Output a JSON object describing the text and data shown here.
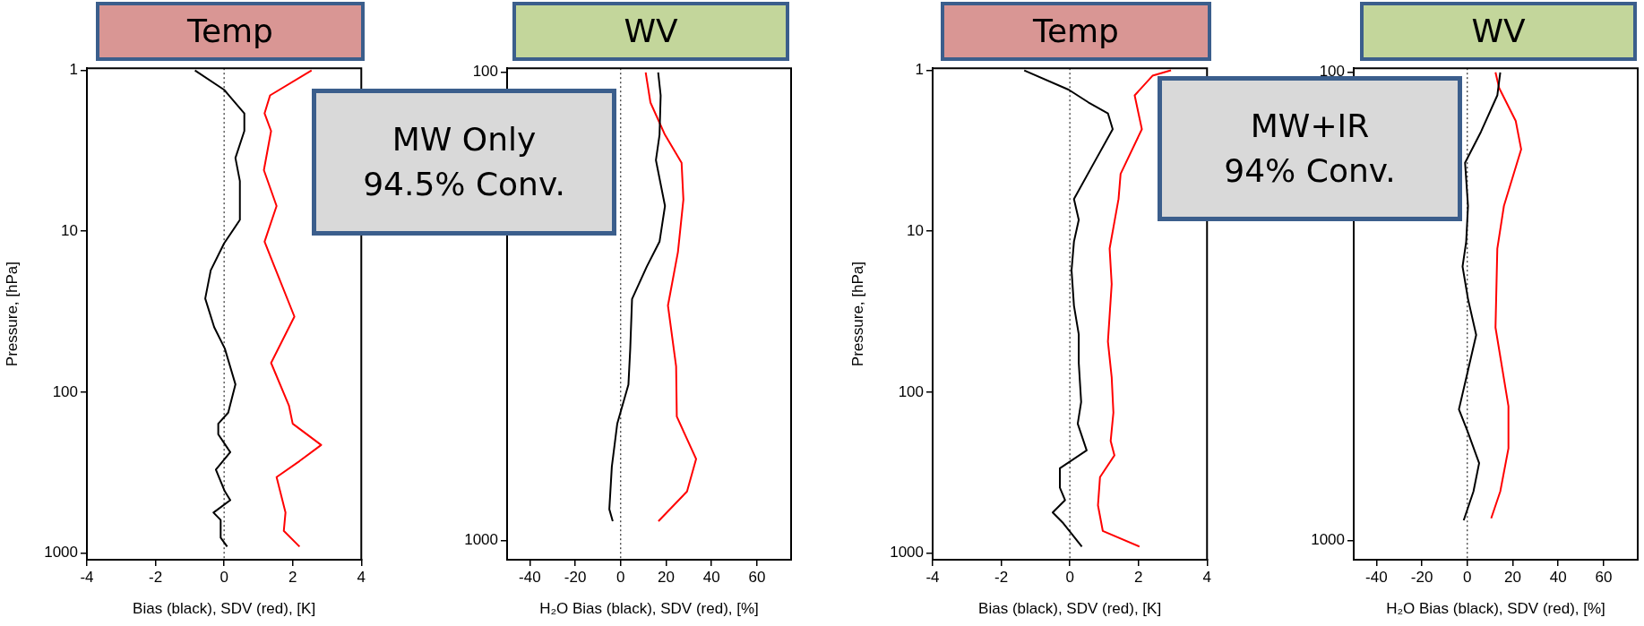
{
  "chart_data": [
    {
      "type": "line",
      "title": "Temp",
      "xlabel": "Bias (black), SDV (red), [K]",
      "ylabel": "Pressure, [hPa]",
      "xlim": [
        -4,
        4
      ],
      "xticks": [
        -4,
        -2,
        0,
        2,
        4
      ],
      "ylim": [
        1100,
        0.97
      ],
      "yticks": [
        1,
        10,
        100,
        1000
      ],
      "log": "y",
      "ref_lines": [
        {
          "axis": "x",
          "value": 0,
          "line_style": "dotted",
          "color": "#000000"
        }
      ],
      "annotations": [
        "MW Only\n94.5% Conv."
      ],
      "series": [
        {
          "color": "#000000",
          "x": [
            -0.85,
            0,
            0.59,
            0.59,
            0.33,
            0.46,
            0.46,
            0,
            -0.39,
            -0.55,
            -0.29,
            0.02,
            0.33,
            0.12,
            -0.17,
            -0.17,
            0.18,
            -0.24,
            0.02,
            0.18,
            -0.31,
            -0.1,
            -0.1,
            0.09
          ],
          "values": [
            1,
            1.32,
            1.85,
            2.38,
            3.5,
            4.87,
            8.5,
            11.9,
            17.5,
            26.2,
            39.4,
            53.5,
            89.4,
            134,
            157,
            183,
            236,
            303,
            413,
            469,
            560,
            623,
            803,
            912
          ]
        },
        {
          "color": "#ff0000",
          "x": [
            2.55,
            1.34,
            1.18,
            1.37,
            1.16,
            1.53,
            1.18,
            1.47,
            2.05,
            1.37,
            1.89,
            2.0,
            2.83,
            2.2,
            1.53,
            1.79,
            1.74,
            2.2
          ],
          "values": [
            1,
            1.43,
            1.85,
            2.38,
            4.17,
            6.96,
            11.6,
            16.6,
            33.9,
            65.8,
            121,
            157,
            213,
            268,
            337,
            560,
            728,
            912
          ]
        }
      ]
    },
    {
      "type": "line",
      "title": "WV",
      "xlabel": "H₂O Bias (black), SDV (red), [%]",
      "xlim": [
        -50,
        75
      ],
      "xticks": [
        -40,
        -20,
        0,
        20,
        40,
        60
      ],
      "ylim": [
        1100,
        98
      ],
      "yticks": [
        100,
        1000
      ],
      "log": "y",
      "ref_lines": [
        {
          "axis": "x",
          "value": 0,
          "line_style": "dotted",
          "color": "#000000"
        }
      ],
      "series": [
        {
          "color": "#000000",
          "x": [
            16.5,
            17.6,
            17.1,
            15.5,
            19.5,
            17.1,
            11.5,
            5.0,
            4.2,
            3.4,
            -1.5,
            -3.9,
            -5.0,
            -3.5
          ],
          "values": [
            100,
            112,
            136,
            154,
            193,
            230,
            260,
            305,
            390,
            465,
            563,
            696,
            858,
            910
          ]
        },
        {
          "color": "#ff0000",
          "x": [
            11,
            13.1,
            19.5,
            26.8,
            27.6,
            25.2,
            20.8,
            24.4,
            24.7,
            33.2,
            29.2,
            16.6
          ],
          "values": [
            100,
            116,
            136,
            156,
            187,
            242,
            315,
            425,
            544,
            670,
            786,
            910
          ]
        }
      ]
    },
    {
      "type": "line",
      "title": "Temp",
      "xlabel": "Bias (black), SDV (red), [K]",
      "ylabel": "Pressure, [hPa]",
      "xlim": [
        -4,
        4
      ],
      "xticks": [
        -4,
        -2,
        0,
        2,
        4
      ],
      "ylim": [
        1100,
        0.97
      ],
      "yticks": [
        1,
        10,
        100,
        1000
      ],
      "log": "y",
      "ref_lines": [
        {
          "axis": "x",
          "value": 0,
          "line_style": "dotted",
          "color": "#000000"
        }
      ],
      "annotations": [
        "MW+IR\n94% Conv."
      ],
      "series": [
        {
          "color": "#000000",
          "x": [
            -1.33,
            -0.03,
            0.54,
            1.11,
            1.25,
            0.7,
            0.12,
            0.26,
            0.12,
            0.05,
            0.12,
            0.26,
            0.26,
            0.33,
            0.23,
            0.49,
            -0.29,
            -0.29,
            -0.14,
            -0.5,
            -0.19,
            0.35
          ],
          "values": [
            1,
            1.32,
            1.58,
            1.85,
            2.32,
            3.77,
            6.3,
            8.5,
            11.6,
            17.5,
            29,
            43.7,
            65.8,
            115,
            157,
            230,
            297,
            393,
            469,
            560,
            653,
            912
          ]
        },
        {
          "color": "#ff0000",
          "x": [
            2.95,
            2.41,
            1.89,
            2.1,
            1.48,
            1.42,
            1.16,
            1.22,
            1.11,
            1.22,
            1.27,
            1.19,
            1.3,
            0.88,
            0.82,
            0.96,
            2.03
          ],
          "values": [
            1,
            1.08,
            1.43,
            2.32,
            4.4,
            6.3,
            12.8,
            21.3,
            48.5,
            80.8,
            134,
            201,
            247,
            337,
            505,
            728,
            912
          ]
        }
      ]
    },
    {
      "type": "line",
      "title": "WV",
      "xlabel": "H₂O Bias (black), SDV (red), [%]",
      "xlim": [
        -50,
        75
      ],
      "xticks": [
        -40,
        -20,
        0,
        20,
        40,
        60
      ],
      "ylim": [
        1100,
        98
      ],
      "yticks": [
        100,
        1000
      ],
      "log": "y",
      "ref_lines": [
        {
          "axis": "x",
          "value": 0,
          "line_style": "dotted",
          "color": "#000000"
        }
      ],
      "series": [
        {
          "color": "#000000",
          "x": [
            14.5,
            13.2,
            6.0,
            -1.0,
            0.3,
            -0.5,
            -2.1,
            0.3,
            3.9,
            0.3,
            -3.7,
            0,
            5.2,
            2.7,
            -1.6
          ],
          "values": [
            100,
            112,
            134,
            156,
            193,
            230,
            260,
            305,
            364,
            433,
            525,
            583,
            684,
            786,
            906
          ]
        },
        {
          "color": "#ff0000",
          "x": [
            12.4,
            14.0,
            21.3,
            23.7,
            16.1,
            13.2,
            12.4,
            18.1,
            18.1,
            14.5,
            10.5
          ],
          "values": [
            100,
            108,
            127,
            146,
            193,
            238,
            351,
            517,
            636,
            786,
            897
          ]
        }
      ]
    }
  ]
}
